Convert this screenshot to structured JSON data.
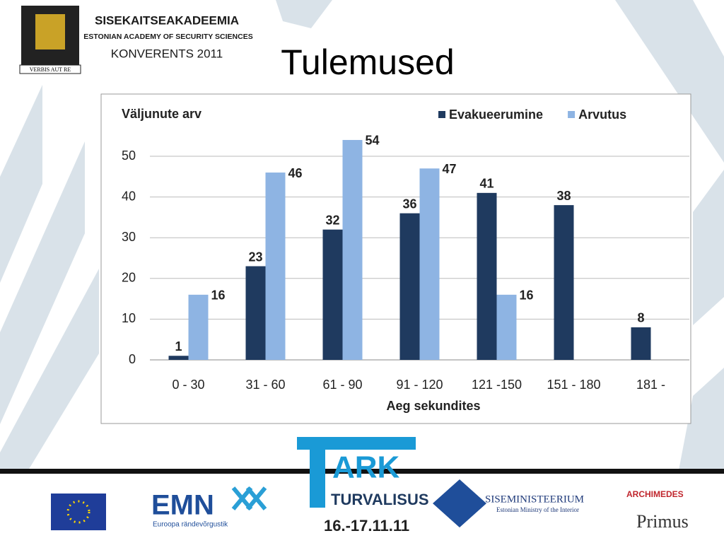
{
  "slide": {
    "title": "Tulemused"
  },
  "header": {
    "academy": "SISEKAITSEAKADEEMIA",
    "academy_en": "ESTONIAN ACADEMY OF SECURITY SCIENCES",
    "conference": "KONVERENTS 2011",
    "motto": "VERBIS AUT RE"
  },
  "footer": {
    "emn": "EMN",
    "emn_sub": "Euroopa rändevõrgustik",
    "tark": "ARK",
    "turvalisus": "TURVALISUS",
    "dates": "16.-17.11.11",
    "ministry": "SISEMINISTEERIUM",
    "ministry_en": "Estonian Ministry of the Interior",
    "archimedes": "ARCHIMEDES",
    "primus": "Primus"
  },
  "chart_data": {
    "type": "bar",
    "ylabel": "Väljunute arv",
    "xlabel": "Aeg sekundites",
    "categories": [
      "0 - 30",
      "31 - 60",
      "61 - 90",
      "91 - 120",
      "121 -150",
      "151 - 180",
      "181 -"
    ],
    "series": [
      {
        "name": "Evakueerumine",
        "color": "#1f3a5f",
        "values": [
          1,
          23,
          32,
          36,
          41,
          38,
          8
        ]
      },
      {
        "name": "Arvutus",
        "color": "#8eb4e3",
        "values": [
          16,
          46,
          54,
          47,
          16,
          null,
          null
        ]
      }
    ],
    "ylim": [
      0,
      55
    ],
    "yticks": [
      0,
      10,
      20,
      30,
      40,
      50
    ],
    "grid": true,
    "legend": "top-right"
  }
}
